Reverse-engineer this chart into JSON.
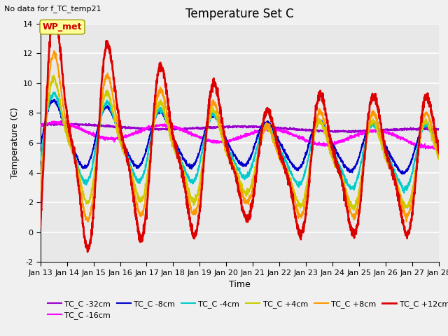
{
  "title": "Temperature Set C",
  "no_data_text": "No data for f_TC_temp21",
  "xlabel": "Time",
  "ylabel": "Temperature (C)",
  "ylim": [
    -2,
    14
  ],
  "xlim": [
    0,
    360
  ],
  "x_tick_labels": [
    "Jan 13",
    "Jan 14",
    "Jan 15",
    "Jan 16",
    "Jan 17",
    "Jan 18",
    "Jan 19",
    "Jan 20",
    "Jan 21",
    "Jan 22",
    "Jan 23",
    "Jan 24",
    "Jan 25",
    "Jan 26",
    "Jan 27",
    "Jan 28"
  ],
  "x_tick_positions": [
    0,
    24,
    48,
    72,
    96,
    120,
    144,
    168,
    192,
    216,
    240,
    264,
    288,
    312,
    336,
    360
  ],
  "yticks": [
    -2,
    0,
    2,
    4,
    6,
    8,
    10,
    12,
    14
  ],
  "legend_entries": [
    "TC_C -32cm",
    "TC_C -16cm",
    "TC_C -8cm",
    "TC_C -4cm",
    "TC_C +4cm",
    "TC_C +8cm",
    "TC_C +12cm"
  ],
  "line_colors": [
    "#9900cc",
    "#ff00ff",
    "#0000cc",
    "#00cccc",
    "#cccc00",
    "#ff9900",
    "#dd0000"
  ],
  "line_widths": [
    1.5,
    1.5,
    1.5,
    1.5,
    1.5,
    1.5,
    2.0
  ],
  "wp_met_box_color": "#ffff99",
  "wp_met_text_color": "#cc0000",
  "bg_color": "#e8e8e8",
  "fig_color": "#f0f0f0",
  "title_fontsize": 12,
  "label_fontsize": 9,
  "tick_fontsize": 8
}
